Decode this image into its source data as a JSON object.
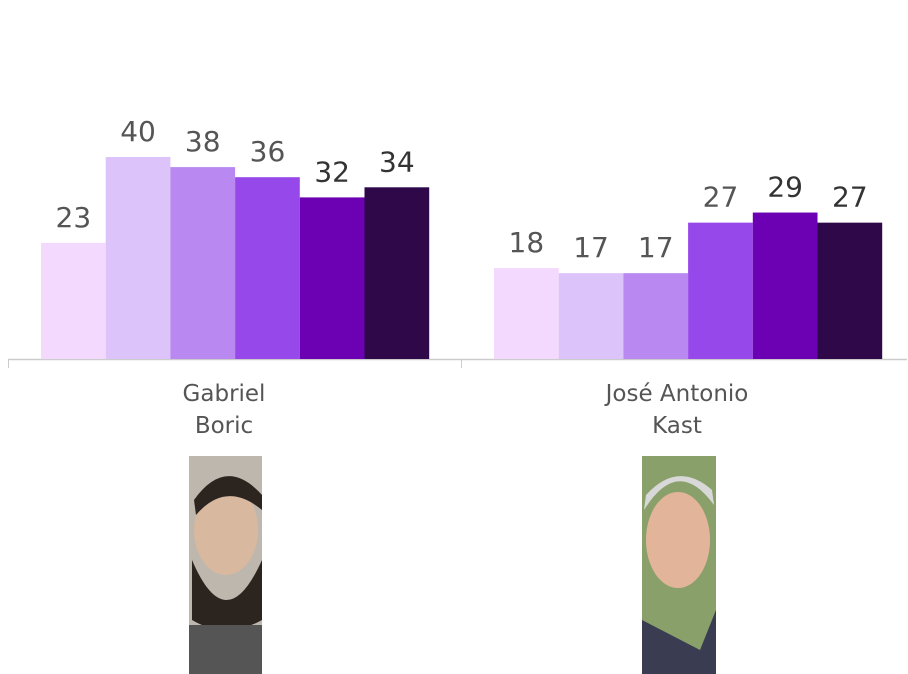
{
  "chart_data": {
    "type": "bar",
    "categories": [
      "Gabriel\nBoric",
      "José Antonio\nKast"
    ],
    "series": [
      {
        "color": "#f3d9fd",
        "values": [
          23,
          18
        ]
      },
      {
        "color": "#dcc3fa",
        "values": [
          40,
          17
        ]
      },
      {
        "color": "#b988f1",
        "values": [
          38,
          17
        ]
      },
      {
        "color": "#9748ea",
        "values": [
          36,
          27
        ]
      },
      {
        "color": "#6c00b3",
        "values": [
          32,
          29
        ]
      },
      {
        "color": "#2e0849",
        "values": [
          34,
          27
        ]
      }
    ]
  }
}
